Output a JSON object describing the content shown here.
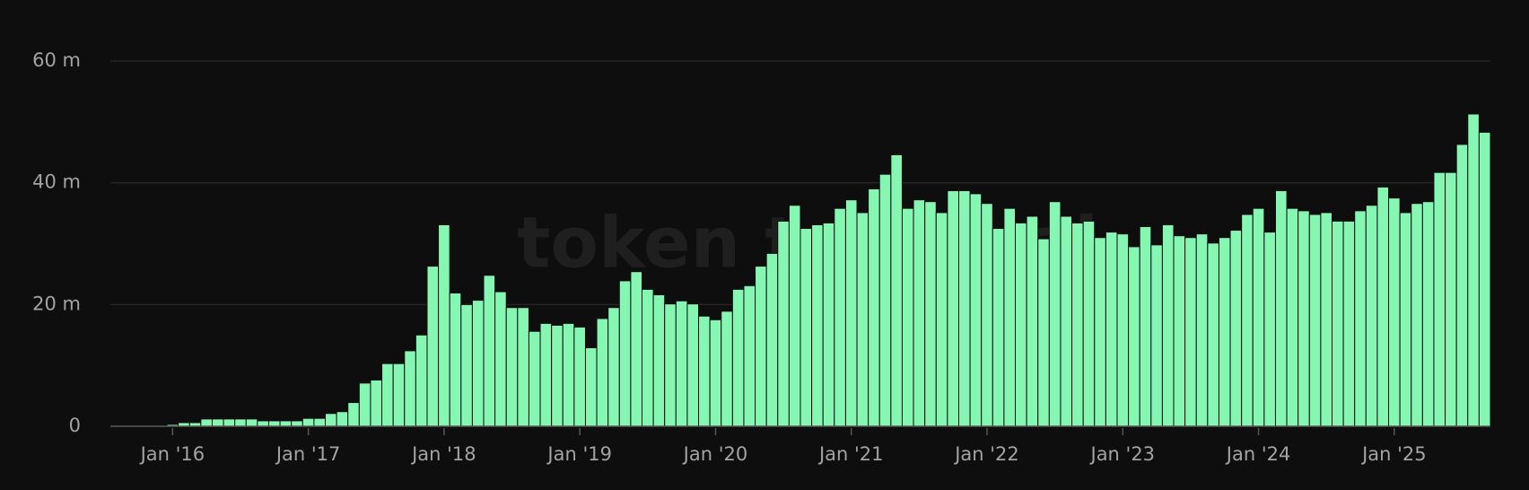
{
  "chart_data": {
    "type": "bar",
    "watermark": "token terminal",
    "categories": [
      null,
      null,
      null,
      null,
      null,
      "Jan '16",
      null,
      null,
      null,
      null,
      null,
      null,
      null,
      null,
      null,
      null,
      null,
      "Jan '17",
      null,
      null,
      null,
      null,
      null,
      null,
      null,
      null,
      null,
      null,
      null,
      "Jan '18",
      null,
      null,
      null,
      null,
      null,
      null,
      null,
      null,
      null,
      null,
      null,
      "Jan '19",
      null,
      null,
      null,
      null,
      null,
      null,
      null,
      null,
      null,
      null,
      null,
      "Jan '20",
      null,
      null,
      null,
      null,
      null,
      null,
      null,
      null,
      null,
      null,
      null,
      "Jan '21",
      null,
      null,
      null,
      null,
      null,
      null,
      null,
      null,
      null,
      null,
      null,
      "Jan '22",
      null,
      null,
      null,
      null,
      null,
      null,
      null,
      null,
      null,
      null,
      null,
      "Jan '23",
      null,
      null,
      null,
      null,
      null,
      null,
      null,
      null,
      null,
      null,
      null,
      "Jan '24",
      null,
      null,
      null,
      null,
      null,
      null,
      null,
      null,
      null,
      null,
      null,
      "Jan '25",
      null,
      null,
      null,
      null,
      null,
      null,
      null,
      null
    ],
    "values": [
      0,
      0,
      0,
      0,
      0,
      0.3,
      0.6,
      0.6,
      1.2,
      1.2,
      1.2,
      1.2,
      1.2,
      0.9,
      0.9,
      0.9,
      0.9,
      1.3,
      1.3,
      2.1,
      2.4,
      3.9,
      7.1,
      7.6,
      10.3,
      10.3,
      12.4,
      15,
      26.3,
      33.1,
      21.9,
      20,
      20.7,
      24.8,
      22.1,
      19.5,
      19.5,
      15.6,
      16.9,
      16.6,
      16.9,
      16.3,
      12.9,
      17.7,
      19.5,
      23.9,
      25.4,
      22.5,
      21.6,
      20.1,
      20.6,
      20.1,
      18.1,
      17.5,
      18.9,
      22.5,
      23.1,
      26.3,
      28.4,
      33.7,
      36.3,
      32.5,
      33.1,
      33.4,
      35.8,
      37.2,
      35.1,
      39,
      41.4,
      44.6,
      35.8,
      37.2,
      36.9,
      35.1,
      38.7,
      38.7,
      38.2,
      36.6,
      32.5,
      35.8,
      33.4,
      34.5,
      30.8,
      36.9,
      34.5,
      33.4,
      33.7,
      31,
      31.9,
      31.6,
      29.5,
      32.8,
      29.8,
      33.1,
      31.3,
      31,
      31.6,
      30.1,
      31,
      32.2,
      34.8,
      35.8,
      31.9,
      38.7,
      35.8,
      35.4,
      34.8,
      35.1,
      33.7,
      33.7,
      35.4,
      36.3,
      39.3,
      37.5,
      35.1,
      36.6,
      36.9,
      41.7,
      41.7,
      46.3,
      51.3,
      48.3
    ],
    "color": "#86f7b2",
    "ylim": [
      0,
      60
    ],
    "yticks": [
      0,
      {
        "value": 20,
        "label": "20 m"
      },
      {
        "value": 40,
        "label": "40 m"
      },
      {
        "value": 60,
        "label": "60 m"
      }
    ],
    "grid": true
  }
}
